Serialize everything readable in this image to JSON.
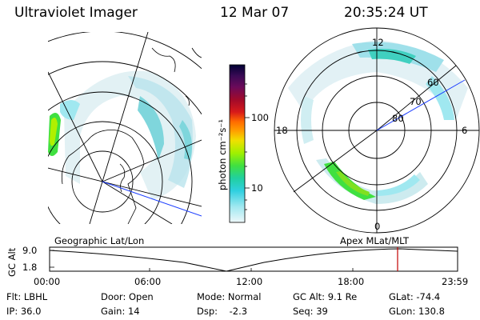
{
  "header": {
    "instrument": "Ultraviolet Imager",
    "date": "12 Mar 07",
    "time": "20:35:24 UT"
  },
  "colorbar": {
    "label": "photon cm⁻²s⁻¹",
    "ticks": [
      "100",
      "10"
    ],
    "colors": [
      "#000033",
      "#2a0a4a",
      "#5a0a5a",
      "#8a0a2a",
      "#b8001a",
      "#e0201a",
      "#ff6a00",
      "#ffa000",
      "#f0e000",
      "#b0f000",
      "#40e040",
      "#20d0a0",
      "#30d0e0",
      "#a0e8f0",
      "#e0f4f8"
    ]
  },
  "left_map": {
    "caption": "Geographic Lat/Lon"
  },
  "right_map": {
    "caption": "Apex MLat/MLT",
    "lat_labels": [
      "60",
      "70",
      "80"
    ],
    "mlt_labels": [
      "12",
      "18",
      "6",
      "0"
    ]
  },
  "altitude_plot": {
    "ylabel": "GC Alt",
    "yticks": [
      "9.0",
      "1.8"
    ],
    "xticks": [
      "00:00",
      "06:00",
      "12:00",
      "18:00",
      "23:59"
    ]
  },
  "info": {
    "row1": [
      "Flt: LBHL",
      "Door: Open",
      "Mode: Normal",
      "GC Alt: 9.1 Re",
      "GLat: -74.4"
    ],
    "row2": [
      "IP: 36.0",
      "Gain: 14",
      "Dsp:    -2.3",
      "Seq: 39",
      "GLon: 130.8"
    ]
  }
}
